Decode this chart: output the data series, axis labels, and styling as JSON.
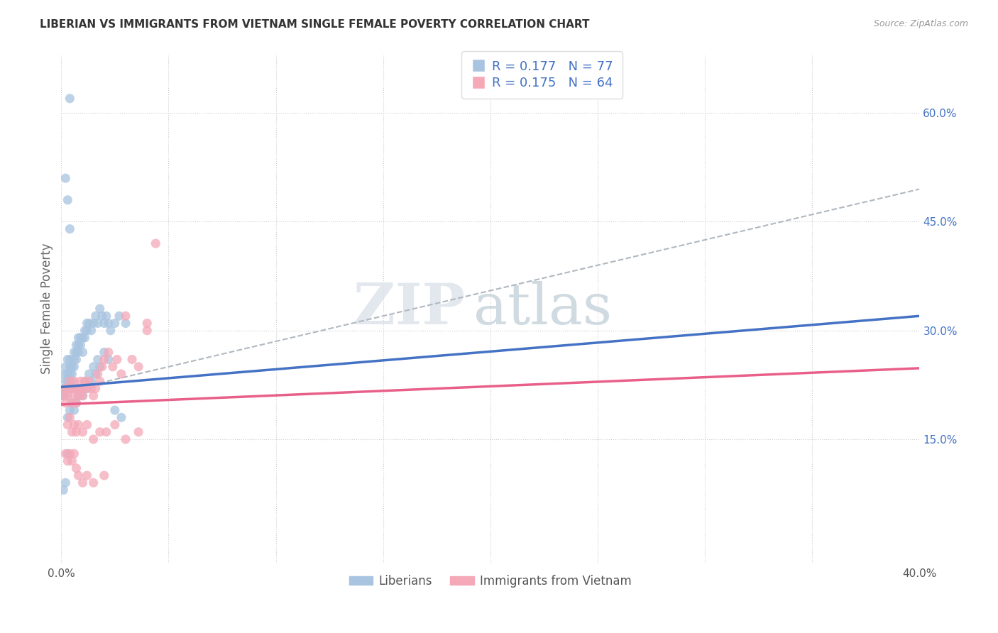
{
  "title": "LIBERIAN VS IMMIGRANTS FROM VIETNAM SINGLE FEMALE POVERTY CORRELATION CHART",
  "source": "Source: ZipAtlas.com",
  "ylabel": "Single Female Poverty",
  "yticks": [
    "60.0%",
    "45.0%",
    "30.0%",
    "15.0%"
  ],
  "ytick_vals": [
    0.6,
    0.45,
    0.3,
    0.15
  ],
  "xlim": [
    0.0,
    0.4
  ],
  "ylim": [
    -0.02,
    0.68
  ],
  "color_liberian": "#a8c4e0",
  "color_vietnam": "#f4a8b8",
  "color_blue_text": "#4472c4",
  "color_trendline_blue": "#4472c4",
  "color_trendline_pink": "#e8608a",
  "color_trendline_dashed": "#b0b8c0",
  "watermark_zip": "ZIP",
  "watermark_atlas": "atlas",
  "liberian_x": [
    0.001,
    0.001,
    0.001,
    0.002,
    0.002,
    0.002,
    0.002,
    0.003,
    0.003,
    0.003,
    0.003,
    0.004,
    0.004,
    0.004,
    0.004,
    0.005,
    0.005,
    0.005,
    0.005,
    0.006,
    0.006,
    0.006,
    0.007,
    0.007,
    0.007,
    0.008,
    0.008,
    0.008,
    0.009,
    0.009,
    0.01,
    0.01,
    0.011,
    0.011,
    0.012,
    0.012,
    0.013,
    0.014,
    0.015,
    0.016,
    0.017,
    0.018,
    0.019,
    0.02,
    0.021,
    0.022,
    0.023,
    0.025,
    0.027,
    0.03,
    0.003,
    0.004,
    0.005,
    0.006,
    0.007,
    0.008,
    0.009,
    0.01,
    0.011,
    0.012,
    0.013,
    0.014,
    0.015,
    0.016,
    0.017,
    0.018,
    0.02,
    0.022,
    0.025,
    0.028,
    0.001,
    0.002,
    0.003,
    0.004,
    0.002,
    0.003,
    0.004
  ],
  "liberian_y": [
    0.22,
    0.24,
    0.21,
    0.23,
    0.22,
    0.25,
    0.21,
    0.24,
    0.22,
    0.26,
    0.23,
    0.25,
    0.23,
    0.24,
    0.26,
    0.24,
    0.23,
    0.25,
    0.22,
    0.25,
    0.27,
    0.26,
    0.28,
    0.27,
    0.26,
    0.28,
    0.29,
    0.27,
    0.29,
    0.28,
    0.29,
    0.27,
    0.3,
    0.29,
    0.3,
    0.31,
    0.31,
    0.3,
    0.31,
    0.32,
    0.31,
    0.33,
    0.32,
    0.31,
    0.32,
    0.31,
    0.3,
    0.31,
    0.32,
    0.31,
    0.18,
    0.19,
    0.2,
    0.19,
    0.2,
    0.21,
    0.22,
    0.21,
    0.23,
    0.22,
    0.24,
    0.23,
    0.25,
    0.24,
    0.26,
    0.25,
    0.27,
    0.26,
    0.19,
    0.18,
    0.08,
    0.09,
    0.13,
    0.62,
    0.51,
    0.48,
    0.44
  ],
  "vietnam_x": [
    0.001,
    0.002,
    0.002,
    0.003,
    0.003,
    0.004,
    0.004,
    0.005,
    0.005,
    0.006,
    0.006,
    0.007,
    0.007,
    0.008,
    0.008,
    0.009,
    0.009,
    0.01,
    0.01,
    0.011,
    0.012,
    0.013,
    0.014,
    0.015,
    0.016,
    0.017,
    0.018,
    0.019,
    0.02,
    0.022,
    0.024,
    0.026,
    0.028,
    0.03,
    0.033,
    0.036,
    0.04,
    0.044,
    0.003,
    0.004,
    0.005,
    0.006,
    0.007,
    0.008,
    0.01,
    0.012,
    0.015,
    0.018,
    0.021,
    0.025,
    0.03,
    0.036,
    0.04,
    0.002,
    0.003,
    0.004,
    0.005,
    0.006,
    0.007,
    0.008,
    0.01,
    0.012,
    0.015,
    0.02
  ],
  "vietnam_y": [
    0.21,
    0.22,
    0.2,
    0.22,
    0.21,
    0.23,
    0.22,
    0.2,
    0.22,
    0.21,
    0.23,
    0.22,
    0.2,
    0.22,
    0.21,
    0.22,
    0.23,
    0.21,
    0.22,
    0.23,
    0.22,
    0.23,
    0.22,
    0.21,
    0.22,
    0.24,
    0.23,
    0.25,
    0.26,
    0.27,
    0.25,
    0.26,
    0.24,
    0.32,
    0.26,
    0.25,
    0.31,
    0.42,
    0.17,
    0.18,
    0.16,
    0.17,
    0.16,
    0.17,
    0.16,
    0.17,
    0.15,
    0.16,
    0.16,
    0.17,
    0.15,
    0.16,
    0.3,
    0.13,
    0.12,
    0.13,
    0.12,
    0.13,
    0.11,
    0.1,
    0.09,
    0.1,
    0.09,
    0.1
  ],
  "trendline_blue_x0": 0.0,
  "trendline_blue_y0": 0.222,
  "trendline_blue_x1": 0.4,
  "trendline_blue_y1": 0.32,
  "trendline_pink_x0": 0.0,
  "trendline_pink_y0": 0.198,
  "trendline_pink_x1": 0.4,
  "trendline_pink_y1": 0.248,
  "trendline_dash_x0": 0.0,
  "trendline_dash_y0": 0.215,
  "trendline_dash_x1": 0.4,
  "trendline_dash_y1": 0.495
}
